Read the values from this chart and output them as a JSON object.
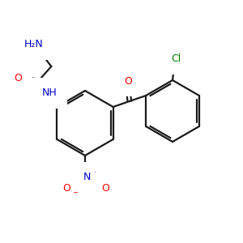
{
  "bg_color": "#ffffff",
  "bond_color": "#1a1a1a",
  "atom_colors": {
    "O": "#ff0000",
    "N": "#0000cc",
    "Cl": "#008000",
    "NH": "#0000cc",
    "N+": "#0000cc",
    "O-": "#ff0000",
    "H2N": "#0000cc"
  },
  "figsize": [
    3.0,
    3.0
  ],
  "dpi": 100
}
